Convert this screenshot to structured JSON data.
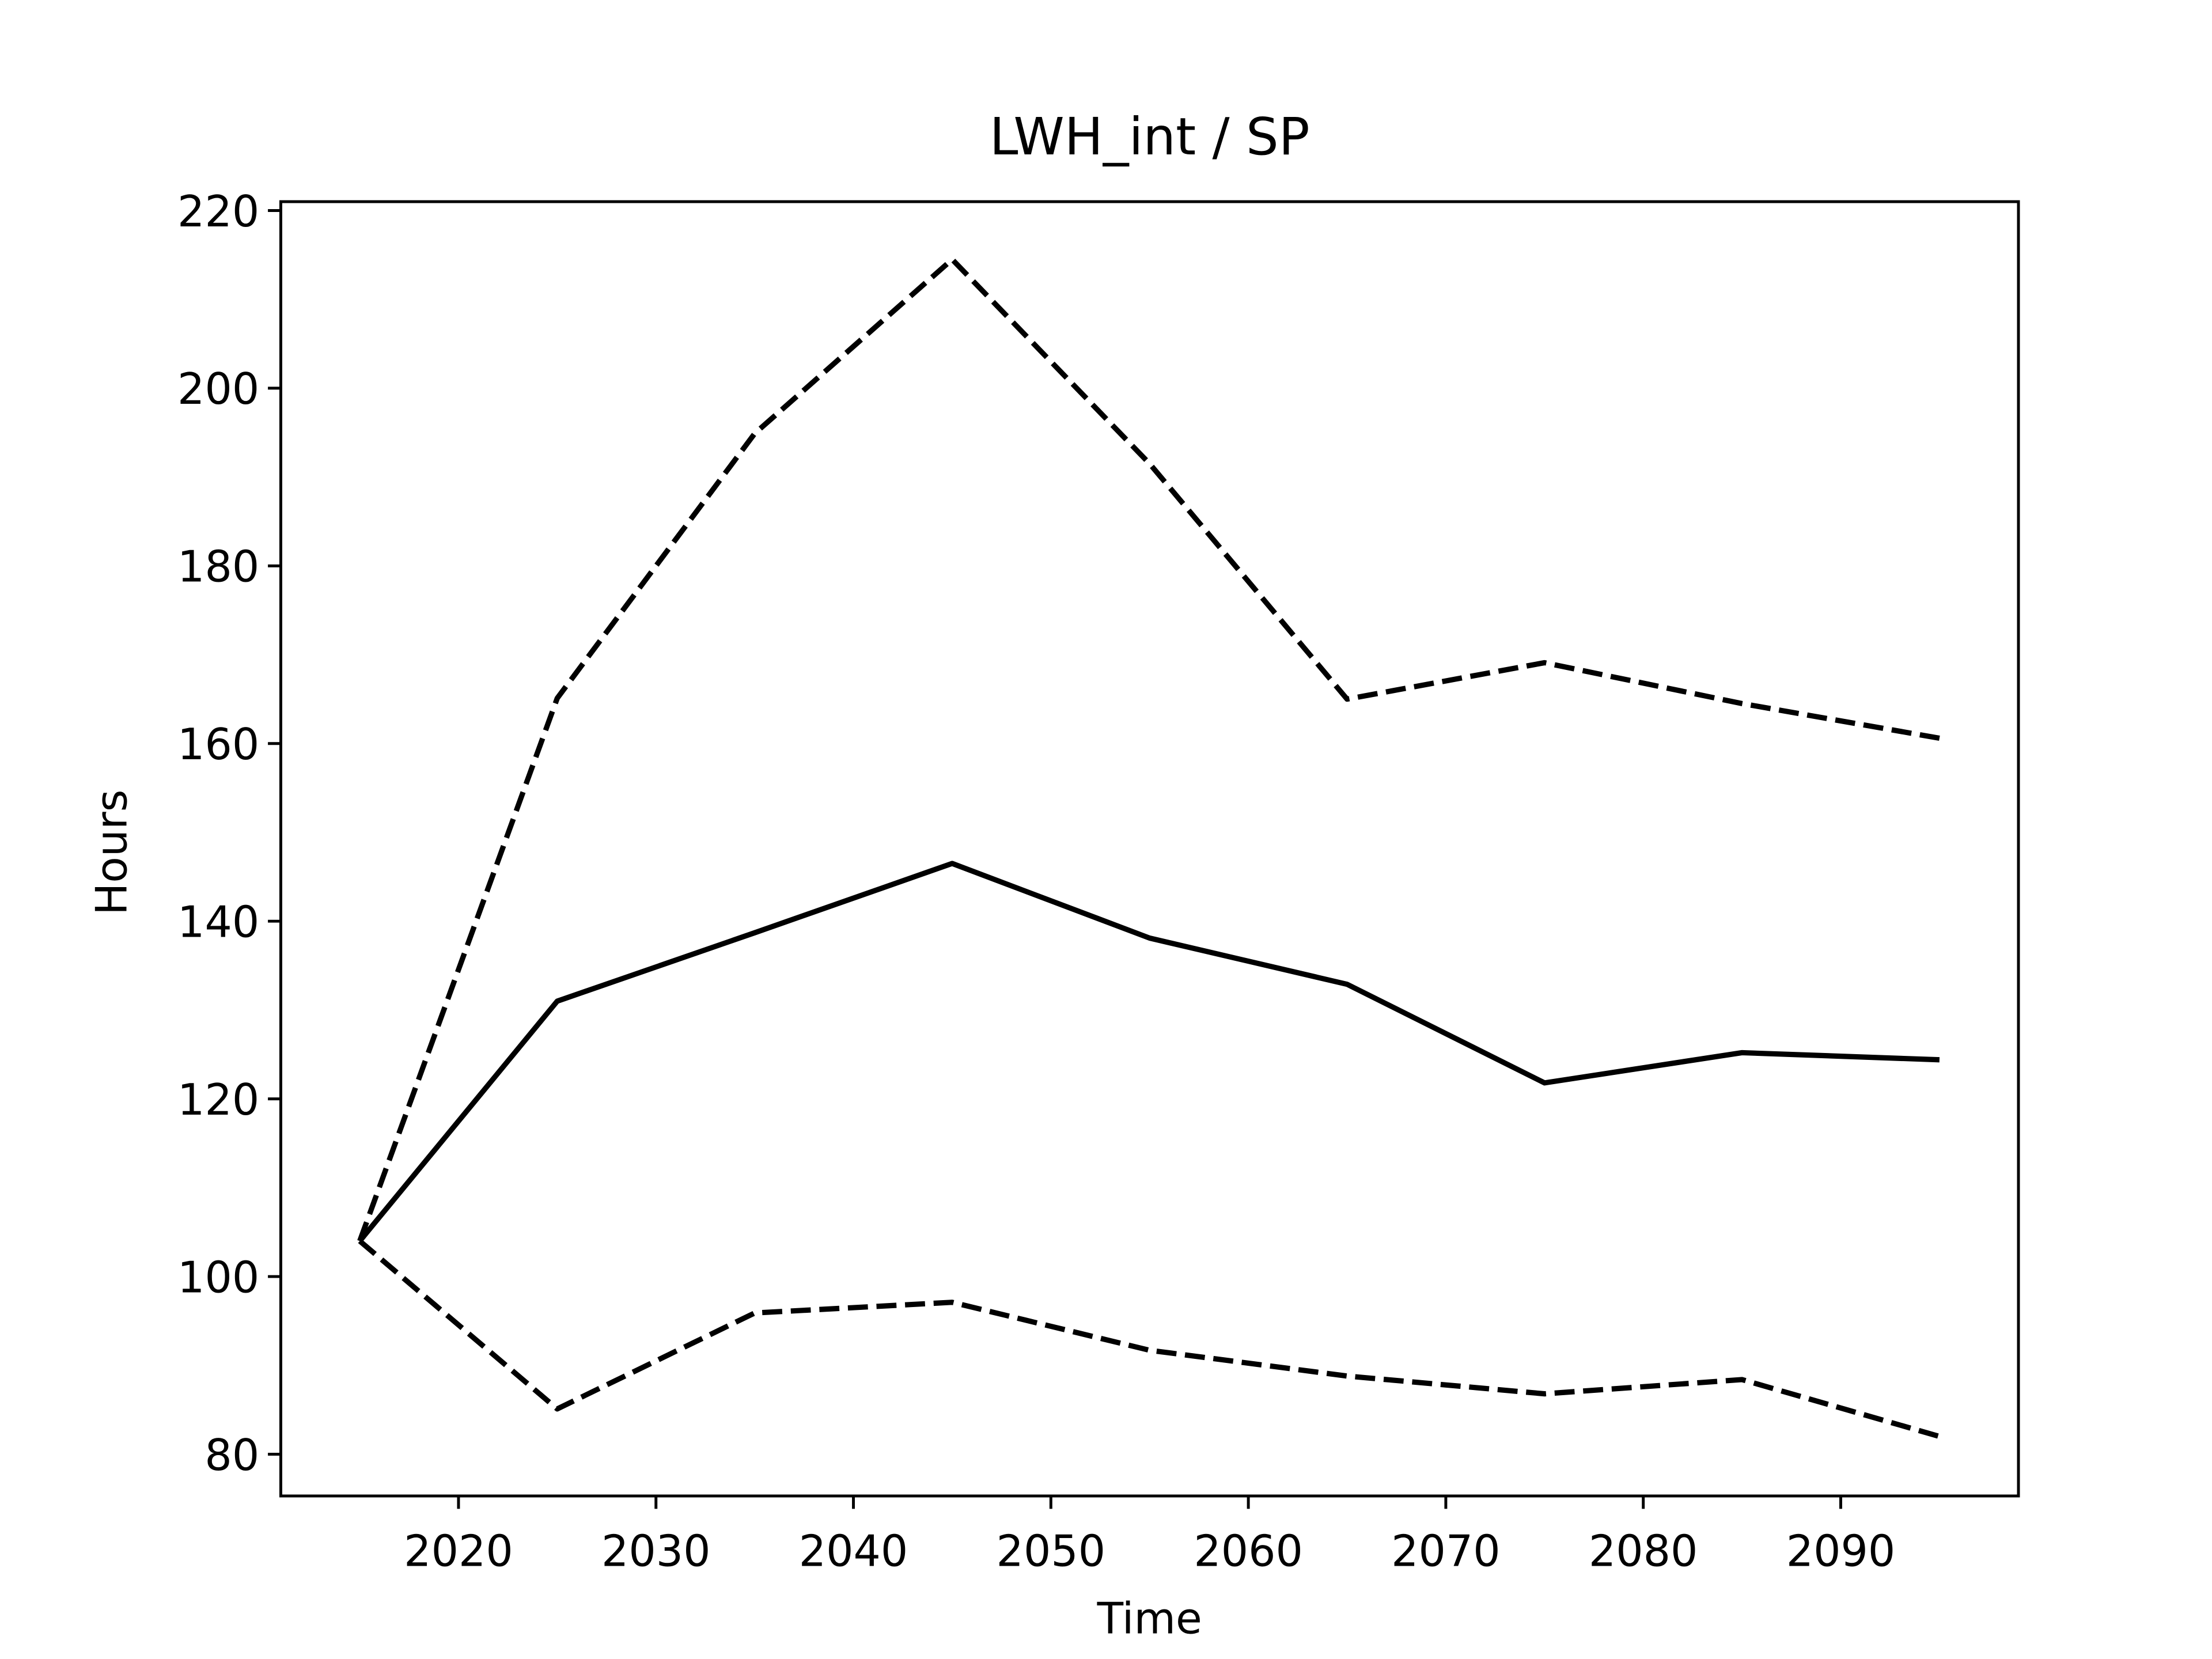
{
  "chart_data": {
    "type": "line",
    "title": "LWH_int / SP",
    "xlabel": "Time",
    "ylabel": "Hours",
    "x": [
      2015,
      2025,
      2035,
      2045,
      2055,
      2065,
      2075,
      2085,
      2095
    ],
    "series": [
      {
        "color": "#000000",
        "linestyle": "solid",
        "values": [
          104,
          131,
          138.7,
          146.5,
          138.1,
          132.9,
          121.8,
          125.2,
          124.4
        ]
      },
      {
        "color": "#000000",
        "linestyle": "dashed",
        "values": [
          104,
          165.1,
          194.9,
          214.5,
          191.5,
          165.0,
          169.1,
          164.5,
          160.6
        ]
      },
      {
        "color": "#000000",
        "linestyle": "dashed",
        "values": [
          104,
          85.1,
          95.9,
          97.1,
          91.7,
          88.8,
          86.8,
          88.4,
          82.0
        ]
      }
    ],
    "xlim": [
      2011,
      2099
    ],
    "ylim": [
      75.3,
      221.0
    ],
    "xticks": [
      2020,
      2030,
      2040,
      2050,
      2060,
      2070,
      2080,
      2090
    ],
    "yticks": [
      80,
      100,
      120,
      140,
      160,
      180,
      200,
      220
    ],
    "grid": false
  }
}
